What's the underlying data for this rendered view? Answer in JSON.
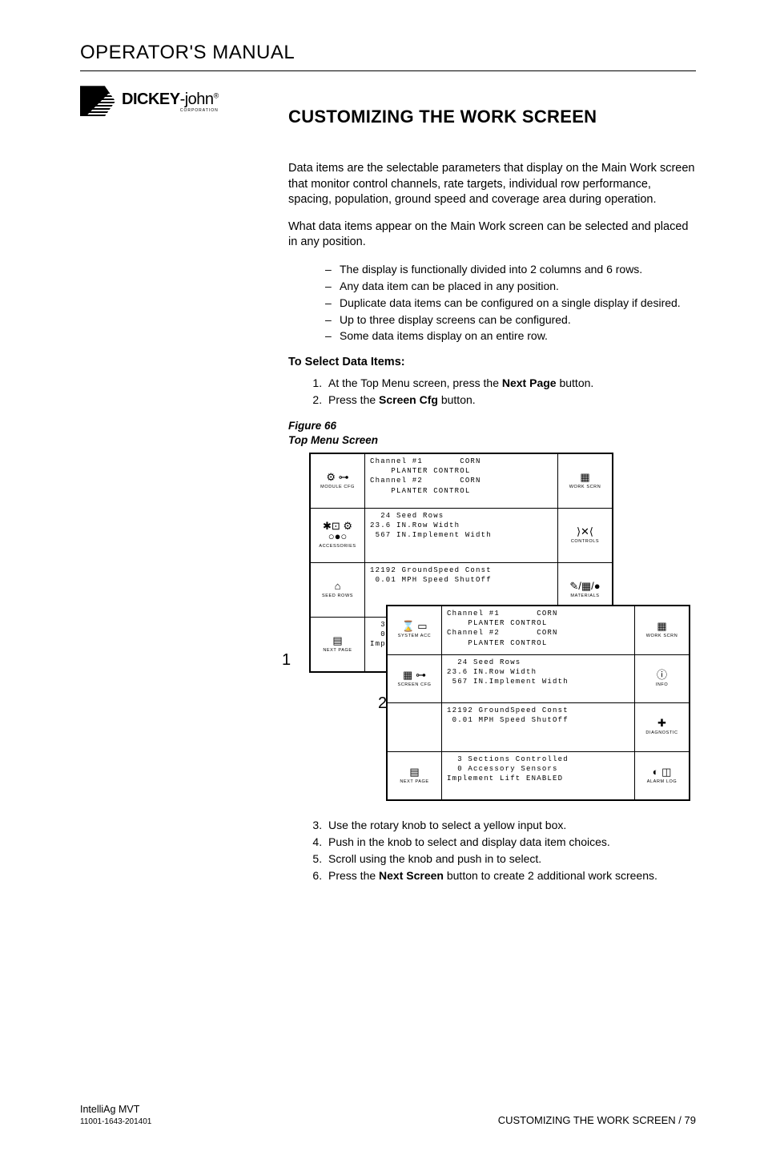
{
  "header": {
    "title": "OPERATOR'S MANUAL"
  },
  "logo": {
    "brand_a": "DICKEY",
    "brand_b": "-john",
    "sub": "CORPORATION",
    "reg": "®"
  },
  "section_title": "CUSTOMIZING THE WORK SCREEN",
  "para1": "Data items are the selectable parameters that display on the Main Work screen that monitor control channels, rate targets, individual row performance, spacing, population, ground speed and coverage area during operation.",
  "para2": "What data items appear on the Main Work screen can be selected and placed in any position.",
  "bullets": [
    "The display is functionally divided into 2 columns and 6 rows.",
    "Any data item can be placed in any position.",
    "Duplicate data items can be configured on a single display if desired.",
    "Up to three display screens can be configured.",
    "Some data items display on an entire row."
  ],
  "select_heading": "To Select Data Items:",
  "steps_top": [
    {
      "pre": "At the Top Menu screen, press the ",
      "bold": "Next Page",
      "post": " button."
    },
    {
      "pre": "Press the ",
      "bold": "Screen Cfg",
      "post": " button."
    }
  ],
  "figure": {
    "num": "Figure 66",
    "title": "Top Menu Screen"
  },
  "callouts": {
    "c1": "1",
    "c2": "2"
  },
  "screenA": {
    "left": [
      {
        "icon": "⚙ ⊶",
        "label": "MODULE CFG"
      },
      {
        "icon": "✱⊡ ⚙\n○●○",
        "label": "ACCESSORIES"
      },
      {
        "icon": "⌂",
        "label": "SEED ROWS"
      },
      {
        "icon": "▤",
        "label": "NEXT PAGE"
      }
    ],
    "mid": [
      "Channel #1       CORN\n    PLANTER CONTROL\nChannel #2       CORN\n    PLANTER CONTROL",
      "  24 Seed Rows\n23.6 IN.Row Width\n 567 IN.Implement Width",
      "12192 GroundSpeed Const\n 0.01 MPH Speed ShutOff",
      "  3 S\n  0 A\nImpl"
    ],
    "right": [
      {
        "icon": "▦",
        "label": "WORK SCRN"
      },
      {
        "icon": "⟩✕⟨",
        "label": "CONTROLS"
      },
      {
        "icon": "✎/▦/●",
        "label": "MATERIALS"
      },
      {
        "icon": "",
        "label": ""
      }
    ]
  },
  "screenB": {
    "left": [
      {
        "icon": "⌛ ▭",
        "label": "SYSTEM ACC"
      },
      {
        "icon": "▦ ⊶",
        "label": "SCREEN CFG"
      },
      {
        "icon": "",
        "label": ""
      },
      {
        "icon": "▤",
        "label": "NEXT PAGE"
      }
    ],
    "mid": [
      "Channel #1       CORN\n    PLANTER CONTROL\nChannel #2       CORN\n    PLANTER CONTROL",
      "  24 Seed Rows\n23.6 IN.Row Width\n 567 IN.Implement Width",
      "12192 GroundSpeed Const\n 0.01 MPH Speed ShutOff",
      "  3 Sections Controlled\n  0 Accessory Sensors\nImplement Lift ENABLED"
    ],
    "right": [
      {
        "icon": "▦",
        "label": "WORK SCRN"
      },
      {
        "icon": "ⓘ",
        "label": "INFO"
      },
      {
        "icon": "✚",
        "label": "DIAGNOSTIC"
      },
      {
        "icon": "◐ ◫",
        "label": "ALARM LOG"
      }
    ]
  },
  "steps_bottom": [
    {
      "n": "3",
      "pre": "Use the rotary knob to select a yellow input box.",
      "bold": "",
      "post": ""
    },
    {
      "n": "4",
      "pre": "Push in the knob to select and display data item choices.",
      "bold": "",
      "post": ""
    },
    {
      "n": "5",
      "pre": "Scroll using the knob and push in to select.",
      "bold": "",
      "post": ""
    },
    {
      "n": "6",
      "pre": "Press the ",
      "bold": "Next Screen",
      "post": " button to create 2 additional work screens."
    }
  ],
  "footer": {
    "product": "IntelliAg MVT",
    "docnum": "11001-1643-201401",
    "right": "CUSTOMIZING THE WORK SCREEN / 79"
  }
}
